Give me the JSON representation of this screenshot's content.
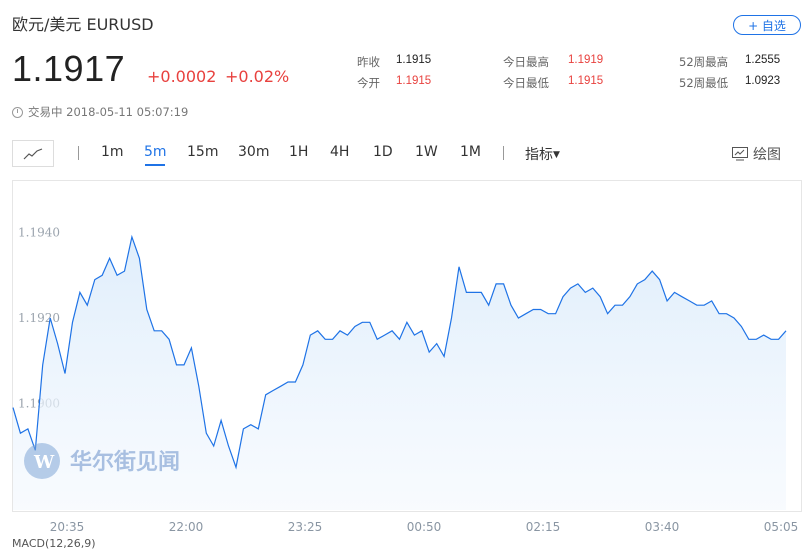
{
  "header": {
    "title": "欧元/美元  EURUSD",
    "add_label": "+ 自选",
    "price": "1.1917",
    "change": "+0.0002",
    "change_pct": "+0.02%"
  },
  "stats": [
    {
      "label": "昨收",
      "value": "1.1915",
      "color": "#222222"
    },
    {
      "label": "今开",
      "value": "1.1915",
      "color": "#e8413e"
    },
    {
      "label": "今日最高",
      "value": "1.1919",
      "color": "#e8413e"
    },
    {
      "label": "今日最低",
      "value": "1.1915",
      "color": "#e8413e"
    },
    {
      "label": "52周最高",
      "value": "1.2555",
      "color": "#222222"
    },
    {
      "label": "52周最低",
      "value": "1.0923",
      "color": "#222222"
    }
  ],
  "status": {
    "text": "交易中 2018-05-11 05:07:19"
  },
  "toolbar": {
    "periods": [
      "1m",
      "5m",
      "15m",
      "30m",
      "1H",
      "4H",
      "1D",
      "1W",
      "1M"
    ],
    "active_period": "5m",
    "indicator_label": "指标",
    "draw_label": "绘图"
  },
  "watermark": "华尔街见闻",
  "bottom_cut_text": "MACD(12,26,9)",
  "colors": {
    "accent": "#1f73e6",
    "up": "#e8413e",
    "line": "#1f73e6",
    "area": "#e8f3fd"
  },
  "chart_data": {
    "type": "area",
    "title": "",
    "xlabel": "",
    "ylabel": "",
    "x_tick_labels": [
      "20:35",
      "22:00",
      "23:25",
      "00:50",
      "02:15",
      "03:40",
      "05:05"
    ],
    "y_ticks": [
      1.19,
      1.192,
      1.194
    ],
    "y_tick_labels": [
      "1.1900",
      "1.1920",
      "1.1940"
    ],
    "ylim": [
      1.1875,
      1.195
    ],
    "grid": false,
    "series": [
      {
        "values": [
          1.1899,
          1.1893,
          1.1894,
          1.1889,
          1.1909,
          1.192,
          1.1914,
          1.1907,
          1.1919,
          1.1926,
          1.1923,
          1.1929,
          1.193,
          1.1934,
          1.193,
          1.1931,
          1.1939,
          1.1934,
          1.1922,
          1.1917,
          1.1917,
          1.1915,
          1.1909,
          1.1909,
          1.1913,
          1.1904,
          1.1893,
          1.189,
          1.1896,
          1.189,
          1.1885,
          1.1894,
          1.1895,
          1.1894,
          1.1902,
          1.1903,
          1.1904,
          1.1905,
          1.1905,
          1.1909,
          1.1916,
          1.1917,
          1.1915,
          1.1915,
          1.1917,
          1.1916,
          1.1918,
          1.1919,
          1.1919,
          1.1915,
          1.1916,
          1.1917,
          1.1915,
          1.1919,
          1.1916,
          1.1917,
          1.1912,
          1.1914,
          1.1911,
          1.192,
          1.1932,
          1.1926,
          1.1926,
          1.1926,
          1.1923,
          1.1928,
          1.1928,
          1.1923,
          1.192,
          1.1921,
          1.1922,
          1.1922,
          1.1921,
          1.1921,
          1.1925,
          1.1927,
          1.1928,
          1.1926,
          1.1927,
          1.1925,
          1.1921,
          1.1923,
          1.1923,
          1.1925,
          1.1928,
          1.1929,
          1.1931,
          1.1929,
          1.1924,
          1.1926,
          1.1925,
          1.1924,
          1.1923,
          1.1923,
          1.1924,
          1.1921,
          1.1921,
          1.192,
          1.1918,
          1.1915,
          1.1915,
          1.1916,
          1.1915,
          1.1915,
          1.1917
        ]
      }
    ]
  }
}
